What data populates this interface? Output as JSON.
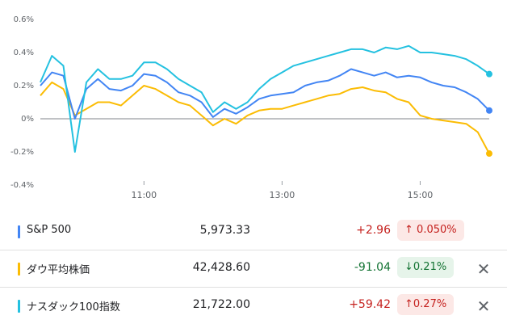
{
  "chart_data": {
    "type": "line",
    "title": "",
    "xlabel": "",
    "ylabel": "",
    "x_ticks": [
      "11:00",
      "13:00",
      "15:00"
    ],
    "y_ticks": [
      "0.6%",
      "0.4%",
      "0.2%",
      "0%",
      "-0.2%",
      "-0.4%"
    ],
    "ylim": [
      -0.4,
      0.6
    ],
    "xlim": [
      "09:30",
      "16:00"
    ],
    "grid": "horizontal-zero-line",
    "series": [
      {
        "name": "S&P 500",
        "color": "#4285f4",
        "x": [
          "09:30",
          "09:40",
          "09:50",
          "10:00",
          "10:10",
          "10:20",
          "10:30",
          "10:40",
          "10:50",
          "11:00",
          "11:10",
          "11:20",
          "11:30",
          "11:40",
          "11:50",
          "12:00",
          "12:10",
          "12:20",
          "12:30",
          "12:40",
          "12:50",
          "13:00",
          "13:10",
          "13:20",
          "13:30",
          "13:40",
          "13:50",
          "14:00",
          "14:10",
          "14:20",
          "14:30",
          "14:40",
          "14:50",
          "15:00",
          "15:10",
          "15:20",
          "15:30",
          "15:40",
          "15:50",
          "16:00"
        ],
        "values": [
          0.2,
          0.28,
          0.26,
          0.0,
          0.18,
          0.24,
          0.18,
          0.17,
          0.2,
          0.27,
          0.26,
          0.22,
          0.16,
          0.14,
          0.1,
          0.01,
          0.06,
          0.03,
          0.07,
          0.12,
          0.14,
          0.15,
          0.16,
          0.2,
          0.22,
          0.23,
          0.26,
          0.3,
          0.28,
          0.26,
          0.28,
          0.25,
          0.26,
          0.25,
          0.22,
          0.2,
          0.19,
          0.16,
          0.12,
          0.05
        ]
      },
      {
        "name": "ダウ平均株価",
        "color": "#fbbc04",
        "x": [
          "09:30",
          "09:40",
          "09:50",
          "10:00",
          "10:10",
          "10:20",
          "10:30",
          "10:40",
          "10:50",
          "11:00",
          "11:10",
          "11:20",
          "11:30",
          "11:40",
          "11:50",
          "12:00",
          "12:10",
          "12:20",
          "12:30",
          "12:40",
          "12:50",
          "13:00",
          "13:10",
          "13:20",
          "13:30",
          "13:40",
          "13:50",
          "14:00",
          "14:10",
          "14:20",
          "14:30",
          "14:40",
          "14:50",
          "15:00",
          "15:10",
          "15:20",
          "15:30",
          "15:40",
          "15:50",
          "16:00"
        ],
        "values": [
          0.14,
          0.22,
          0.18,
          0.02,
          0.06,
          0.1,
          0.1,
          0.08,
          0.14,
          0.2,
          0.18,
          0.14,
          0.1,
          0.08,
          0.02,
          -0.04,
          0.0,
          -0.03,
          0.02,
          0.05,
          0.06,
          0.06,
          0.08,
          0.1,
          0.12,
          0.14,
          0.15,
          0.18,
          0.19,
          0.17,
          0.16,
          0.12,
          0.1,
          0.02,
          0.0,
          -0.01,
          -0.02,
          -0.03,
          -0.08,
          -0.21
        ]
      },
      {
        "name": "ナスダック100指数",
        "color": "#24c1e0",
        "x": [
          "09:30",
          "09:40",
          "09:50",
          "10:00",
          "10:10",
          "10:20",
          "10:30",
          "10:40",
          "10:50",
          "11:00",
          "11:10",
          "11:20",
          "11:30",
          "11:40",
          "11:50",
          "12:00",
          "12:10",
          "12:20",
          "12:30",
          "12:40",
          "12:50",
          "13:00",
          "13:10",
          "13:20",
          "13:30",
          "13:40",
          "13:50",
          "14:00",
          "14:10",
          "14:20",
          "14:30",
          "14:40",
          "14:50",
          "15:00",
          "15:10",
          "15:20",
          "15:30",
          "15:40",
          "15:50",
          "16:00"
        ],
        "values": [
          0.22,
          0.38,
          0.32,
          -0.2,
          0.22,
          0.3,
          0.24,
          0.24,
          0.26,
          0.34,
          0.34,
          0.3,
          0.24,
          0.2,
          0.16,
          0.04,
          0.1,
          0.06,
          0.1,
          0.18,
          0.24,
          0.28,
          0.32,
          0.34,
          0.36,
          0.38,
          0.4,
          0.42,
          0.42,
          0.4,
          0.43,
          0.42,
          0.44,
          0.4,
          0.4,
          0.39,
          0.38,
          0.36,
          0.32,
          0.27
        ]
      }
    ]
  },
  "rows": [
    {
      "name": "S&P 500",
      "color": "#4285f4",
      "price": "5,973.33",
      "change": "+2.96",
      "pct": "0.050%",
      "arrow": "↑",
      "dir": "up",
      "closable": false
    },
    {
      "name": "ダウ平均株価",
      "color": "#fbbc04",
      "price": "42,428.60",
      "change": "-91.04",
      "pct": "0.21%",
      "arrow": "↓",
      "dir": "down",
      "closable": true
    },
    {
      "name": "ナスダック100指数",
      "color": "#24c1e0",
      "price": "21,722.00",
      "change": "+59.42",
      "pct": "0.27%",
      "arrow": "↑",
      "dir": "up",
      "closable": true
    }
  ],
  "close_glyph": "✕"
}
